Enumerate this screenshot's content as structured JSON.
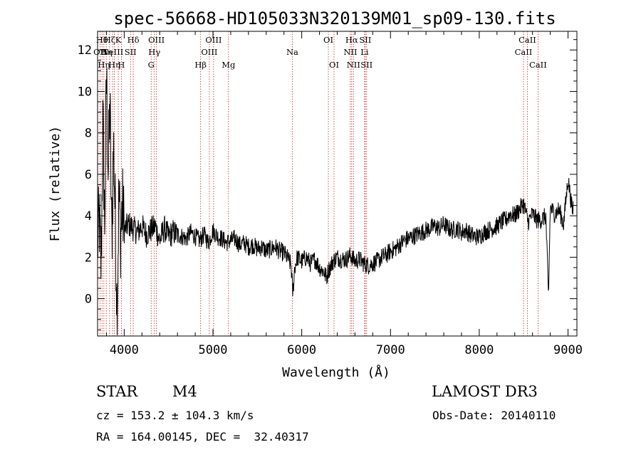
{
  "chart_data": {
    "type": "line",
    "title": "spec-56668-HD105033N320139M01_sp09-130.fits",
    "xlabel": "Wavelength (Å)",
    "ylabel": "Flux (relative)",
    "xlim": [
      3700,
      9100
    ],
    "ylim": [
      -1.8,
      12.9
    ],
    "xticks": [
      4000,
      5000,
      6000,
      7000,
      8000,
      9000
    ],
    "yticks": [
      0,
      2,
      4,
      6,
      8,
      10,
      12
    ],
    "grid": false,
    "spectrum": {
      "x": [
        3700,
        3720,
        3740,
        3760,
        3780,
        3800,
        3820,
        3840,
        3860,
        3880,
        3900,
        3920,
        3940,
        3960,
        3980,
        4000,
        4050,
        4100,
        4150,
        4200,
        4250,
        4300,
        4350,
        4400,
        4450,
        4500,
        4550,
        4600,
        4650,
        4700,
        4750,
        4800,
        4850,
        4900,
        4950,
        5000,
        5050,
        5100,
        5150,
        5200,
        5250,
        5300,
        5350,
        5400,
        5450,
        5500,
        5550,
        5600,
        5650,
        5700,
        5750,
        5800,
        5850,
        5880,
        5900,
        5920,
        5950,
        6000,
        6050,
        6100,
        6150,
        6200,
        6250,
        6280,
        6300,
        6320,
        6350,
        6400,
        6450,
        6500,
        6550,
        6600,
        6650,
        6700,
        6750,
        6800,
        6850,
        6900,
        6950,
        7000,
        7050,
        7100,
        7150,
        7200,
        7250,
        7300,
        7350,
        7400,
        7450,
        7500,
        7550,
        7600,
        7650,
        7700,
        7750,
        7800,
        7850,
        7900,
        7950,
        8000,
        8050,
        8100,
        8150,
        8200,
        8250,
        8300,
        8350,
        8400,
        8450,
        8500,
        8550,
        8600,
        8650,
        8700,
        8750,
        8780,
        8800,
        8850,
        8900,
        8950,
        9000,
        9050,
        9080
      ],
      "y": [
        2.6,
        3.8,
        1.5,
        8.5,
        3.5,
        11.0,
        6.0,
        9.5,
        2.5,
        7.5,
        4.0,
        -0.7,
        5.0,
        3.0,
        4.5,
        3.3,
        3.6,
        3.4,
        3.2,
        3.5,
        3.1,
        3.3,
        3.5,
        2.8,
        3.4,
        3.0,
        3.2,
        3.1,
        3.0,
        2.9,
        3.2,
        3.0,
        2.8,
        3.1,
        2.7,
        3.3,
        3.0,
        2.9,
        2.7,
        2.8,
        2.9,
        2.6,
        2.7,
        2.5,
        2.6,
        2.4,
        2.5,
        2.3,
        2.4,
        2.5,
        2.3,
        2.2,
        1.9,
        1.6,
        0.2,
        1.5,
        2.0,
        1.8,
        2.0,
        1.7,
        1.9,
        1.5,
        1.3,
        1.0,
        1.4,
        1.5,
        1.8,
        2.0,
        1.9,
        1.9,
        2.1,
        1.8,
        1.9,
        1.7,
        1.6,
        1.7,
        1.8,
        2.0,
        2.1,
        2.3,
        2.4,
        2.6,
        2.8,
        2.9,
        3.0,
        3.1,
        3.2,
        3.3,
        3.4,
        3.5,
        3.4,
        3.6,
        3.4,
        3.3,
        3.4,
        3.2,
        3.3,
        3.1,
        3.0,
        3.0,
        3.2,
        3.3,
        3.4,
        3.5,
        3.7,
        3.8,
        4.1,
        4.0,
        4.3,
        4.6,
        3.7,
        4.1,
        3.8,
        3.8,
        4.0,
        0.0,
        4.4,
        4.1,
        4.3,
        3.6,
        5.8,
        4.2,
        5.2
      ]
    },
    "lines": [
      {
        "x": 3727,
        "label": "OII",
        "row": 1
      },
      {
        "x": 3750,
        "label": "Hθ",
        "row": 0
      },
      {
        "x": 3771,
        "label": "Hη",
        "row": 2
      },
      {
        "x": 3798,
        "label": "Hη",
        "row": 1
      },
      {
        "x": 3835,
        "label": "Hζ",
        "row": 0
      },
      {
        "x": 3869,
        "label": "NeIII",
        "row": 1
      },
      {
        "x": 3889,
        "label": "Hη",
        "row": 2
      },
      {
        "x": 3933,
        "label": "K",
        "row": 0
      },
      {
        "x": 3968,
        "label": "H",
        "row": 2
      },
      {
        "x": 4071,
        "label": "SII",
        "row": 1
      },
      {
        "x": 4102,
        "label": "Hδ",
        "row": 0
      },
      {
        "x": 4304,
        "label": "G",
        "row": 2
      },
      {
        "x": 4340,
        "label": "Hγ",
        "row": 1
      },
      {
        "x": 4363,
        "label": "OIII",
        "row": 0
      },
      {
        "x": 4861,
        "label": "Hβ",
        "row": 2
      },
      {
        "x": 4959,
        "label": "OIII",
        "row": 1
      },
      {
        "x": 5007,
        "label": "OIII",
        "row": 0
      },
      {
        "x": 5175,
        "label": "Mg",
        "row": 2
      },
      {
        "x": 5894,
        "label": "Na",
        "row": 1
      },
      {
        "x": 6300,
        "label": "OI",
        "row": 0
      },
      {
        "x": 6364,
        "label": "OI",
        "row": 2
      },
      {
        "x": 6548,
        "label": "NII",
        "row": 1
      },
      {
        "x": 6563,
        "label": "Hα",
        "row": 0
      },
      {
        "x": 6583,
        "label": "NII",
        "row": 2
      },
      {
        "x": 6708,
        "label": "Li",
        "row": 1
      },
      {
        "x": 6716,
        "label": "SII",
        "row": 0
      },
      {
        "x": 6731,
        "label": "SII",
        "row": 2
      },
      {
        "x": 8498,
        "label": "CaII",
        "row": 1
      },
      {
        "x": 8542,
        "label": "CaII",
        "row": 0
      },
      {
        "x": 8662,
        "label": "CaII",
        "row": 2
      }
    ]
  },
  "info": {
    "object_class": "STAR",
    "subclass": "M4",
    "survey": "LAMOST DR3",
    "cz": "cz = 153.2 ± 104.3 km/s",
    "obs_date": "Obs-Date: 20140110",
    "coords": "RA = 164.00145, DEC =  32.40317"
  },
  "colors": {
    "spectrum": "#000000",
    "line_markers": "#cc2222",
    "axes": "#000000"
  }
}
